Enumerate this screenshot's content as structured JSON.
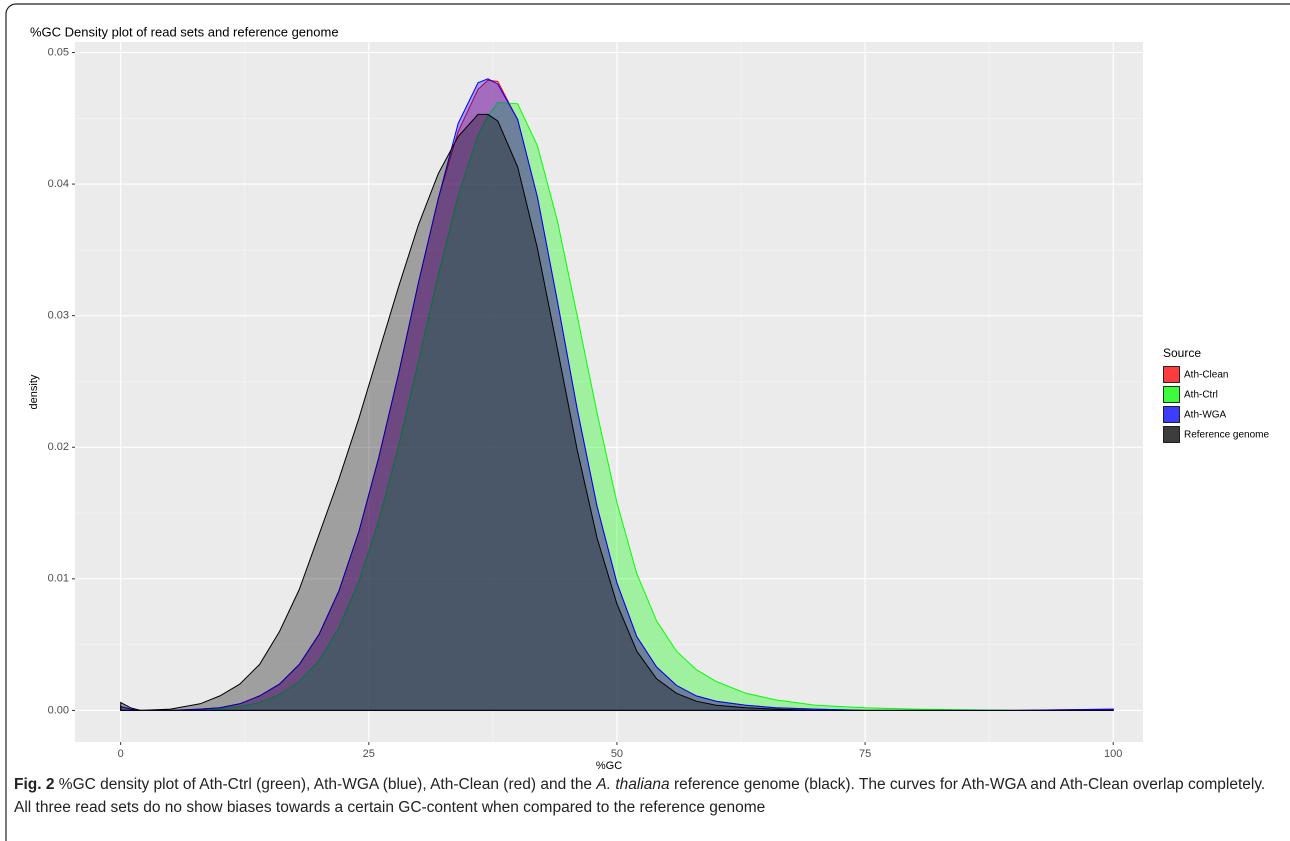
{
  "chart_data": {
    "type": "area",
    "title": "%GC Density plot of read sets and reference genome",
    "x_label": "%GC",
    "y_label": "density",
    "legend_title": "Source",
    "legend_position": "right",
    "xlim": [
      -4.6,
      103
    ],
    "ylim": [
      -0.0024,
      0.0508
    ],
    "xticks": [
      0,
      25,
      50,
      75,
      100
    ],
    "yticks": [
      {
        "value": 0,
        "label": "0.00"
      },
      0.01,
      0.02,
      0.03,
      0.04,
      0.05
    ],
    "grid": true,
    "x": [
      0,
      1,
      2,
      5,
      8,
      10,
      12,
      14,
      16,
      18,
      20,
      22,
      24,
      26,
      28,
      30,
      32,
      34,
      36,
      37,
      38,
      40,
      42,
      44,
      46,
      48,
      50,
      52,
      54,
      56,
      58,
      60,
      63,
      66,
      70,
      75,
      80,
      90,
      100
    ],
    "series": [
      {
        "name": "Ath-Clean",
        "color": "#ff0000",
        "values": [
          0.0003,
          0.0001,
          0,
          0,
          0.0001,
          0.0002,
          0.0005,
          0.0011,
          0.002,
          0.0035,
          0.0058,
          0.0091,
          0.0136,
          0.0192,
          0.0256,
          0.0325,
          0.0389,
          0.044,
          0.0472,
          0.0479,
          0.0478,
          0.0449,
          0.039,
          0.0311,
          0.0229,
          0.0155,
          0.0097,
          0.0056,
          0.0033,
          0.0019,
          0.0011,
          0.0007,
          0.0004,
          0.0002,
          0.0001,
          0,
          0,
          0,
          0.0001
        ]
      },
      {
        "name": "Ath-Ctrl",
        "color": "#00ff00",
        "values": [
          0.0001,
          0,
          0,
          0,
          0,
          0.0001,
          0.0003,
          0.0006,
          0.0012,
          0.0022,
          0.0038,
          0.0063,
          0.0098,
          0.0144,
          0.0201,
          0.0265,
          0.0331,
          0.0391,
          0.0437,
          0.0452,
          0.0462,
          0.0461,
          0.0429,
          0.0372,
          0.03,
          0.0226,
          0.0158,
          0.0104,
          0.0068,
          0.0045,
          0.0031,
          0.0022,
          0.0013,
          0.0008,
          0.0004,
          0.0002,
          0.0001,
          0,
          0
        ]
      },
      {
        "name": "Ath-WGA",
        "color": "#0000ff",
        "values": [
          0.0003,
          0.0001,
          0,
          0,
          0.0001,
          0.0002,
          0.0005,
          0.0011,
          0.002,
          0.0035,
          0.0058,
          0.0091,
          0.0136,
          0.0192,
          0.0256,
          0.0325,
          0.0389,
          0.0446,
          0.0477,
          0.048,
          0.0476,
          0.0449,
          0.039,
          0.0311,
          0.0229,
          0.0155,
          0.0097,
          0.0056,
          0.0033,
          0.0019,
          0.0011,
          0.0007,
          0.0004,
          0.0002,
          0.0001,
          0,
          0,
          0,
          0.0001
        ]
      },
      {
        "name": "Reference genome",
        "color": "#000000",
        "values": [
          0.0006,
          0.0002,
          0,
          0.0001,
          0.0005,
          0.0011,
          0.002,
          0.0035,
          0.006,
          0.0092,
          0.0134,
          0.0176,
          0.0222,
          0.0272,
          0.0322,
          0.0369,
          0.0408,
          0.0436,
          0.0453,
          0.0453,
          0.0448,
          0.0413,
          0.0351,
          0.0275,
          0.0198,
          0.0131,
          0.0081,
          0.0045,
          0.0024,
          0.0013,
          0.0007,
          0.0004,
          0.0002,
          0.0001,
          0,
          0,
          0,
          0,
          0
        ]
      }
    ]
  },
  "caption": {
    "label": "Fig. 2",
    "text_1": "%GC density plot of Ath-Ctrl (green), Ath-WGA (blue), Ath-Clean (red) and the",
    "italic": "A. thaliana",
    "text_2": "reference genome (black). The curves for Ath-WGA and Ath-Clean overlap completely. All three read sets do no show biases towards a certain GC-content when compared to the reference genome"
  }
}
